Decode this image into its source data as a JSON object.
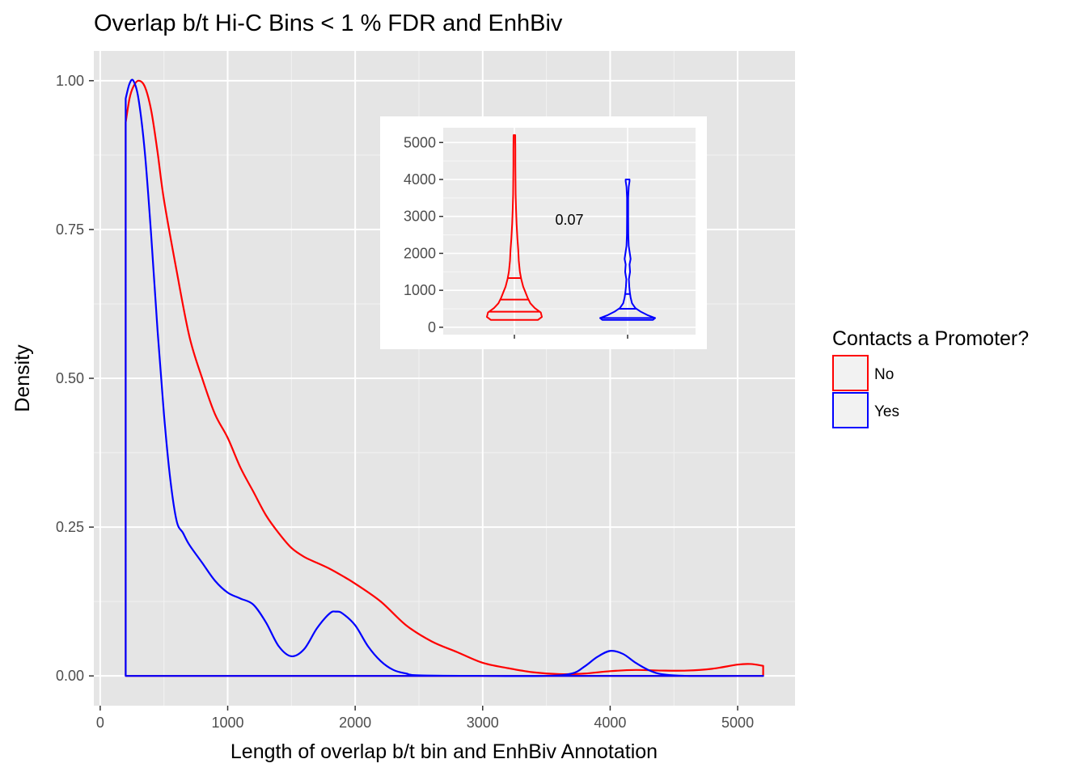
{
  "chart_data": [
    {
      "type": "area",
      "title": "Overlap b/t Hi-C Bins < 1 % FDR and EnhBiv",
      "xlabel": "Length of overlap b/t bin and EnhBiv Annotation",
      "ylabel": "Density",
      "xlim": [
        -50,
        5450
      ],
      "ylim": [
        -0.05,
        1.05
      ],
      "x_ticks": [
        0,
        1000,
        2000,
        3000,
        4000,
        5000
      ],
      "x_tick_labels": [
        "0",
        "1000",
        "2000",
        "3000",
        "4000",
        "5000"
      ],
      "y_ticks": [
        0,
        0.25,
        0.5,
        0.75,
        1.0
      ],
      "y_tick_labels": [
        "0.00",
        "0.25",
        "0.50",
        "0.75",
        "1.00"
      ],
      "grid": true,
      "legend": {
        "title": "Contacts a Promoter?",
        "position": "right",
        "entries": [
          "No",
          "Yes"
        ]
      },
      "series": [
        {
          "name": "No",
          "color": "#ff0000",
          "x": [
            200,
            230,
            260,
            300,
            350,
            400,
            450,
            500,
            600,
            700,
            800,
            900,
            1000,
            1100,
            1200,
            1300,
            1400,
            1500,
            1600,
            1700,
            1800,
            1900,
            2000,
            2200,
            2400,
            2600,
            2800,
            3000,
            3200,
            3400,
            3600,
            3800,
            4000,
            4200,
            4400,
            4600,
            4800,
            5000,
            5100,
            5200
          ],
          "y": [
            0.93,
            0.97,
            0.99,
            1.0,
            0.99,
            0.95,
            0.88,
            0.8,
            0.68,
            0.57,
            0.5,
            0.44,
            0.4,
            0.35,
            0.31,
            0.27,
            0.24,
            0.215,
            0.2,
            0.19,
            0.18,
            0.168,
            0.155,
            0.125,
            0.085,
            0.058,
            0.04,
            0.022,
            0.013,
            0.006,
            0.003,
            0.004,
            0.008,
            0.01,
            0.009,
            0.009,
            0.012,
            0.019,
            0.02,
            0.017
          ]
        },
        {
          "name": "Yes",
          "color": "#0000ff",
          "x": [
            200,
            230,
            260,
            300,
            350,
            400,
            450,
            500,
            550,
            600,
            650,
            700,
            800,
            900,
            1000,
            1100,
            1200,
            1300,
            1400,
            1500,
            1600,
            1700,
            1800,
            1850,
            1900,
            2000,
            2100,
            2200,
            2300,
            2400,
            2500,
            3000,
            3500,
            3700,
            3800,
            3900,
            4000,
            4100,
            4200,
            4300,
            4400,
            4600,
            5000,
            5200
          ],
          "y": [
            0.97,
            0.995,
            1.0,
            0.97,
            0.88,
            0.74,
            0.58,
            0.44,
            0.33,
            0.26,
            0.24,
            0.22,
            0.19,
            0.16,
            0.14,
            0.13,
            0.12,
            0.09,
            0.05,
            0.033,
            0.045,
            0.08,
            0.105,
            0.108,
            0.105,
            0.085,
            0.05,
            0.025,
            0.01,
            0.004,
            0.001,
            0.0,
            0.0,
            0.004,
            0.016,
            0.032,
            0.042,
            0.037,
            0.022,
            0.01,
            0.003,
            0.0,
            0.0,
            0.0
          ]
        }
      ]
    },
    {
      "type": "violin",
      "inset": true,
      "ylim": [
        -200,
        5400
      ],
      "y_ticks": [
        0,
        1000,
        2000,
        3000,
        4000,
        5000
      ],
      "y_tick_labels": [
        "0",
        "1000",
        "2000",
        "3000",
        "4000",
        "5000"
      ],
      "annotation": "0.07",
      "groups": [
        {
          "name": "No",
          "color": "#ff0000",
          "min": 200,
          "max": 5200,
          "quantiles": [
            420,
            750,
            1330
          ],
          "profile_y": [
            200,
            280,
            400,
            520,
            650,
            800,
            950,
            1100,
            1300,
            1500,
            1800,
            2100,
            2400,
            2800,
            3200,
            3600,
            4000,
            4400,
            4800,
            5200
          ],
          "profile_w": [
            0.86,
            1.0,
            0.96,
            0.74,
            0.58,
            0.48,
            0.4,
            0.32,
            0.25,
            0.2,
            0.16,
            0.14,
            0.11,
            0.08,
            0.06,
            0.045,
            0.04,
            0.035,
            0.035,
            0.03
          ]
        },
        {
          "name": "Yes",
          "color": "#0000ff",
          "min": 200,
          "max": 4000,
          "quantiles": [
            250,
            500,
            900
          ],
          "profile_y": [
            200,
            250,
            330,
            420,
            520,
            650,
            800,
            950,
            1100,
            1300,
            1500,
            1700,
            1850,
            2000,
            2200,
            2500,
            3000,
            3500,
            3800,
            3950,
            4000
          ],
          "profile_w": [
            0.92,
            1.0,
            0.72,
            0.48,
            0.28,
            0.16,
            0.11,
            0.08,
            0.06,
            0.045,
            0.09,
            0.07,
            0.11,
            0.08,
            0.04,
            0.025,
            0.02,
            0.02,
            0.04,
            0.07,
            0.07
          ]
        }
      ]
    }
  ]
}
